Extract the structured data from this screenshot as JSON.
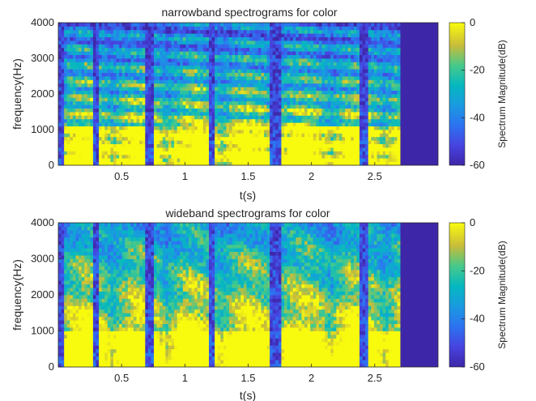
{
  "chart_data": [
    {
      "type": "heatmap",
      "title": "narrowband spectrograms for color",
      "xlabel": "t(s)",
      "ylabel": "frequency(Hz)",
      "xlim": [
        0,
        3.0
      ],
      "ylim": [
        0,
        4000
      ],
      "xticks": [
        0.5,
        1,
        1.5,
        2,
        2.5
      ],
      "xtick_labels": [
        "0.5",
        "1",
        "1.5",
        "2",
        "2.5"
      ],
      "yticks": [
        0,
        1000,
        2000,
        3000,
        4000
      ],
      "ytick_labels": [
        "0",
        "1000",
        "2000",
        "3000",
        "4000"
      ],
      "signal_end_s": 2.7,
      "colorbar": {
        "label": "Spectrum Magnitude(dB)",
        "range": [
          -60,
          0
        ],
        "ticks": [
          0,
          -20,
          -40,
          -60
        ],
        "tick_labels": [
          "0",
          "-20",
          "-40",
          "-60"
        ],
        "colormap": "parula"
      },
      "colors": {
        "background": "#3e26a8",
        "high": "#f9fb0e"
      }
    },
    {
      "type": "heatmap",
      "title": "wideband spectrograms for color",
      "xlabel": "t(s)",
      "ylabel": "frequency(Hz)",
      "xlim": [
        0,
        3.0
      ],
      "ylim": [
        0,
        4000
      ],
      "xticks": [
        0.5,
        1,
        1.5,
        2,
        2.5
      ],
      "xtick_labels": [
        "0.5",
        "1",
        "1.5",
        "2",
        "2.5"
      ],
      "yticks": [
        0,
        1000,
        2000,
        3000,
        4000
      ],
      "ytick_labels": [
        "0",
        "1000",
        "2000",
        "3000",
        "4000"
      ],
      "signal_end_s": 2.7,
      "colorbar": {
        "label": "Spectrum Magnitude(dB)",
        "range": [
          -60,
          0
        ],
        "ticks": [
          0,
          -20,
          -40,
          -60
        ],
        "tick_labels": [
          "0",
          "-20",
          "-40",
          "-60"
        ],
        "colormap": "parula"
      },
      "colors": {
        "background": "#3e26a8",
        "high": "#f9fb0e"
      }
    }
  ]
}
